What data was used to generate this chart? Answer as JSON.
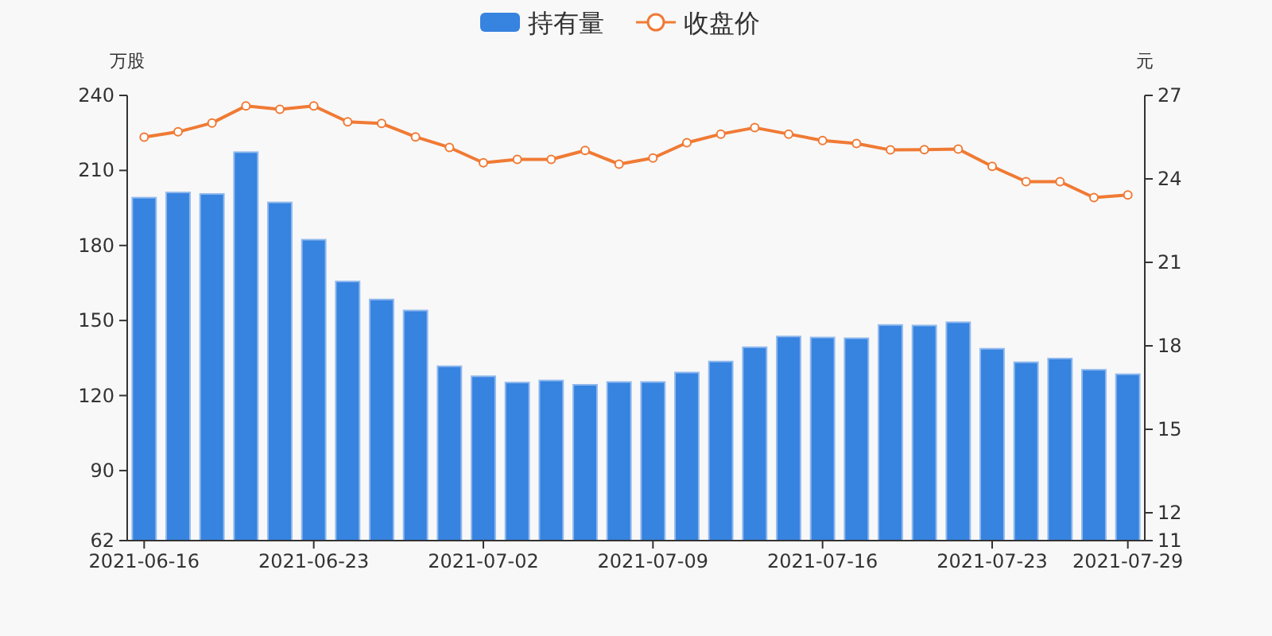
{
  "chart_data": {
    "type": "bar",
    "categories": [
      "2021-06-16",
      null,
      null,
      null,
      null,
      "2021-06-23",
      null,
      null,
      null,
      null,
      "2021-07-02",
      null,
      null,
      null,
      null,
      "2021-07-09",
      null,
      null,
      null,
      null,
      "2021-07-16",
      null,
      null,
      null,
      null,
      "2021-07-23",
      null,
      null,
      null,
      "2021-07-29"
    ],
    "series": [
      {
        "name": "持有量",
        "color": "#3683e0",
        "values": [
          199.1,
          201.2,
          200.6,
          217.3,
          197.2,
          182.3,
          165.6,
          158.4,
          154.0,
          131.7,
          127.7,
          125.2,
          126.0,
          124.3,
          125.4,
          125.4,
          129.2,
          133.6,
          139.3,
          143.6,
          143.2,
          142.9,
          148.2,
          148.0,
          149.3,
          138.7,
          133.3,
          134.8,
          130.3,
          128.5
        ]
      },
      {
        "name": "收盘价",
        "type": "line",
        "axis": "y2",
        "color": "#f07a34",
        "marker": "circle",
        "values": [
          25.5,
          25.69,
          26.01,
          26.62,
          26.5,
          26.62,
          26.05,
          25.99,
          25.51,
          25.13,
          24.58,
          24.7,
          24.7,
          25.02,
          24.53,
          24.75,
          25.3,
          25.61,
          25.84,
          25.61,
          25.38,
          25.27,
          25.04,
          25.05,
          25.07,
          24.45,
          23.9,
          23.9,
          23.33,
          23.42
        ]
      }
    ],
    "ylabel": "万股",
    "y2label": "元",
    "ylim": [
      62,
      240
    ],
    "yticks": [
      62,
      90,
      120,
      150,
      180,
      210,
      240
    ],
    "y2lim": [
      11,
      27
    ],
    "y2ticks": [
      11,
      12,
      15,
      18,
      21,
      24,
      27
    ],
    "legend": "top",
    "grid": false
  }
}
